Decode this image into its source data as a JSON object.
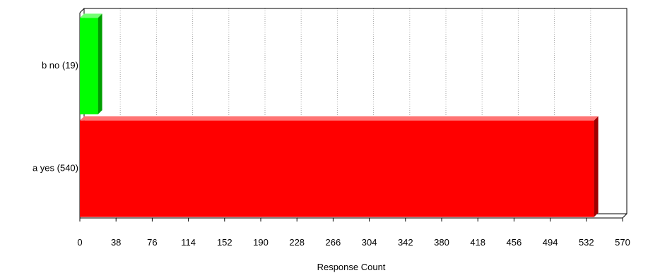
{
  "chart_data": {
    "type": "bar",
    "orientation": "horizontal",
    "categories": [
      "b no (19)",
      "a yes (540)"
    ],
    "values": [
      19,
      540
    ],
    "colors": [
      "#00ff00",
      "#ff0000"
    ],
    "xlabel": "Response Count",
    "xlim": [
      0,
      570
    ],
    "xticks": [
      "0",
      "38",
      "76",
      "114",
      "152",
      "190",
      "228",
      "266",
      "304",
      "342",
      "380",
      "418",
      "456",
      "494",
      "532",
      "570"
    ],
    "grid": "vertical-dotted"
  }
}
